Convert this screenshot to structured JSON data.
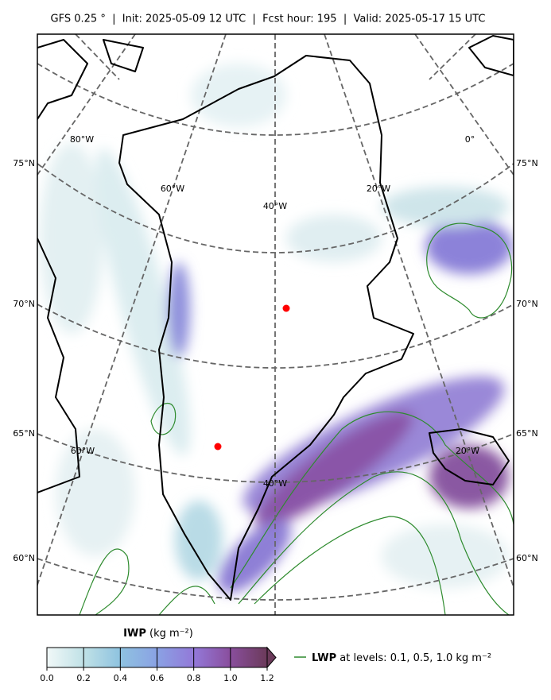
{
  "header": {
    "title": "GFS 0.25 °  |  Init: 2025-05-09 12 UTC  |  Fcst hour: 195  |  Valid: 2025-05-17 15 UTC"
  },
  "map": {
    "lat_labels": [
      "75°N",
      "70°N",
      "65°N",
      "60°N"
    ],
    "lon_labels": [
      "80°W",
      "0°",
      "60°W",
      "40°W",
      "20°W",
      "60°W",
      "20°W",
      "40°W"
    ]
  },
  "colorbar": {
    "label": "IWP",
    "unit": "(kg m⁻²)",
    "ticks": [
      "0.0",
      "0.2",
      "0.4",
      "0.6",
      "0.8",
      "1.0",
      "1.2"
    ]
  },
  "legend": {
    "label": "LWP",
    "text": "at levels: 0.1, 0.5, 1.0  kg m⁻²"
  }
}
